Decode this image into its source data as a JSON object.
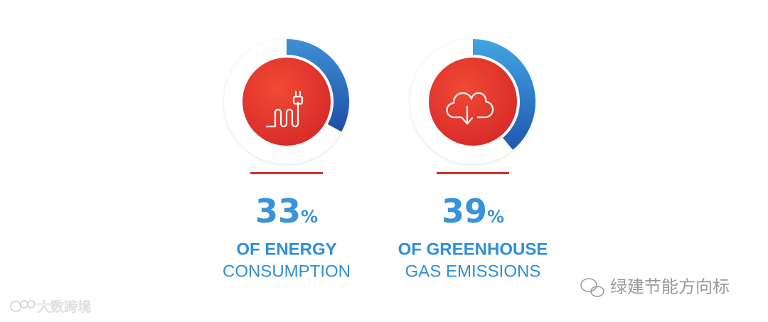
{
  "chart_data": [
    {
      "type": "donut",
      "values": [
        33
      ],
      "value_labels": [
        "33%"
      ],
      "ylim": [
        0,
        100
      ],
      "color": "#1d4fa6",
      "title": "OF ENERGY",
      "subtitle": "CONSUMPTION"
    },
    {
      "type": "donut",
      "values": [
        39
      ],
      "value_labels": [
        "39%"
      ],
      "ylim": [
        0,
        100
      ],
      "color": "#2a7cd0",
      "title": "OF GREENHOUSE",
      "subtitle": "GAS EMISSIONS"
    }
  ],
  "watermarks": {
    "right": "绿建节能方向标",
    "left": "大数跨境"
  }
}
